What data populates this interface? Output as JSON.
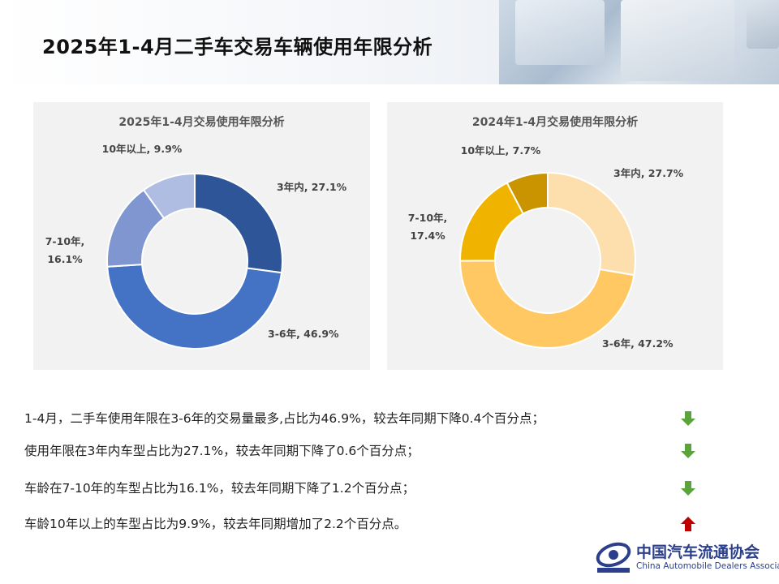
{
  "title": "2025年1-4月二手车交易车辆使用年限分析",
  "chart_data": [
    {
      "type": "pie",
      "title": "2025年1-4月交易使用年限分析",
      "categories": [
        "3年内",
        "3-6年",
        "7-10年",
        "10年以上"
      ],
      "values": [
        27.1,
        46.9,
        16.1,
        9.9
      ],
      "colors": [
        "#2e5597",
        "#4472c4",
        "#7f96d1",
        "#b0bde3"
      ],
      "labels": [
        {
          "line1": "3年内, 27.1%",
          "line2": ""
        },
        {
          "line1": "3-6年, 46.9%",
          "line2": ""
        },
        {
          "line1": "7-10年,",
          "line2": "16.1%"
        },
        {
          "line1": "10年以上, 9.9%",
          "line2": ""
        }
      ]
    },
    {
      "type": "pie",
      "title": "2024年1-4月交易使用年限分析",
      "categories": [
        "3年内",
        "3-6年",
        "7-10年",
        "10年以上"
      ],
      "values": [
        27.7,
        47.2,
        17.4,
        7.7
      ],
      "colors": [
        "#fddfae",
        "#ffc862",
        "#f0b400",
        "#c99400"
      ],
      "labels": [
        {
          "line1": "3年内, 27.7%",
          "line2": ""
        },
        {
          "line1": "3-6年, 47.2%",
          "line2": ""
        },
        {
          "line1": "7-10年,",
          "line2": "17.4%"
        },
        {
          "line1": "10年以上, 7.7%",
          "line2": ""
        }
      ]
    }
  ],
  "notes": [
    {
      "text": "1-4月，二手车使用年限在3-6年的交易量最多,占比为46.9%，较去年同期下降0.4个百分点；",
      "trend": "down"
    },
    {
      "text": "使用年限在3年内车型占比为27.1%，较去年同期下降了0.6个百分点；",
      "trend": "down"
    },
    {
      "text": "车龄在7-10年的车型占比为16.1%，较去年同期下降了1.2个百分点；",
      "trend": "down"
    },
    {
      "text": "车龄10年以上的车型占比为9.9%，较去年同期增加了2.2个百分点。",
      "trend": "up"
    }
  ],
  "trend_colors": {
    "down": "#5ba33b",
    "up": "#c00000"
  },
  "logo": {
    "cn": "中国汽车流通协会",
    "en": "China Automobile Dealers Association"
  }
}
